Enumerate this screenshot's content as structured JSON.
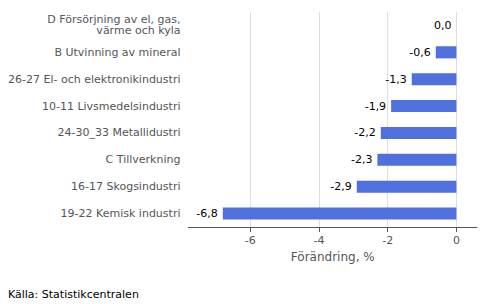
{
  "chart_data": {
    "type": "bar",
    "orientation": "horizontal",
    "categories": [
      "19-22 Kemisk industri",
      "16-17 Skogsindustri",
      "C Tillverkning",
      "24-30_33 Metallidustri",
      "10-11 Livsmedelsindustri",
      "26-27 El- och elektronikindustri",
      "B Utvinning av mineral",
      "D Försörjning av el, gas,\nvärme och kyla"
    ],
    "values": [
      -6.8,
      -2.9,
      -2.3,
      -2.2,
      -1.9,
      -1.3,
      -0.6,
      0.0
    ],
    "value_labels": [
      "-6,8",
      "-2,9",
      "-2,3",
      "-2,2",
      "-1,9",
      "-1,3",
      "-0,6",
      "0,0"
    ],
    "data_labels": true,
    "xlabel": "Förändring, %",
    "xlim": [
      -7.8,
      0.6
    ],
    "xticks": [
      -6,
      -4,
      -2,
      0
    ],
    "grid": true,
    "annotations": [
      "Källa: Statistikcentralen"
    ]
  }
}
